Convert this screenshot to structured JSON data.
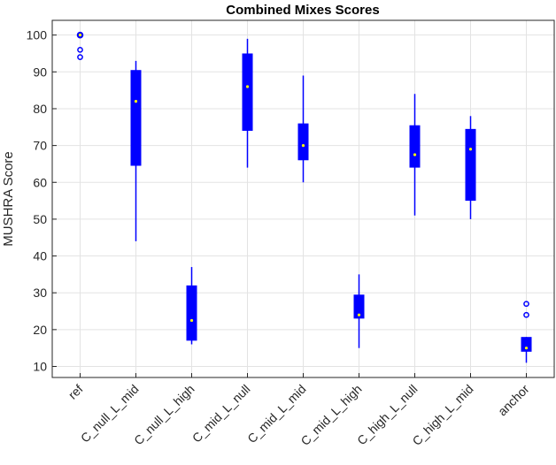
{
  "chart_data": {
    "type": "box",
    "title": "Combined Mixes Scores",
    "xlabel": "",
    "ylabel": "MUSHRA Score",
    "ylim": [
      7,
      104
    ],
    "yticks": [
      10,
      20,
      30,
      40,
      50,
      60,
      70,
      80,
      90,
      100
    ],
    "grid": true,
    "legend": "none",
    "box_color": "#0000ff",
    "median_marker_color": "#ffff00",
    "categories": [
      "ref",
      "C_null_L_mid",
      "C_null_L_high",
      "C_mid_L_null",
      "C_mid_L_mid",
      "C_mid_L_high",
      "C_high_L_null",
      "C_high_L_mid",
      "anchor"
    ],
    "boxes": [
      {
        "category": "ref",
        "min": 100,
        "q1": 100,
        "median": 100,
        "q3": 100,
        "max": 100,
        "outliers": [
          94,
          96
        ]
      },
      {
        "category": "C_null_L_mid",
        "min": 44,
        "q1": 64.5,
        "median": 82,
        "q3": 90.5,
        "max": 93,
        "outliers": []
      },
      {
        "category": "C_null_L_high",
        "min": 16,
        "q1": 17,
        "median": 22.5,
        "q3": 32,
        "max": 37,
        "outliers": []
      },
      {
        "category": "C_mid_L_null",
        "min": 64,
        "q1": 74,
        "median": 86,
        "q3": 95,
        "max": 99,
        "outliers": []
      },
      {
        "category": "C_mid_L_mid",
        "min": 60,
        "q1": 66,
        "median": 70,
        "q3": 76,
        "max": 89,
        "outliers": []
      },
      {
        "category": "C_mid_L_high",
        "min": 15,
        "q1": 23,
        "median": 24,
        "q3": 29.5,
        "max": 35,
        "outliers": []
      },
      {
        "category": "C_high_L_null",
        "min": 51,
        "q1": 64,
        "median": 67.5,
        "q3": 75.5,
        "max": 84,
        "outliers": []
      },
      {
        "category": "C_high_L_mid",
        "min": 50,
        "q1": 55,
        "median": 69,
        "q3": 74.5,
        "max": 78,
        "outliers": []
      },
      {
        "category": "anchor",
        "min": 11,
        "q1": 14,
        "median": 15,
        "q3": 18,
        "max": 18,
        "outliers": [
          24,
          27
        ]
      }
    ]
  }
}
